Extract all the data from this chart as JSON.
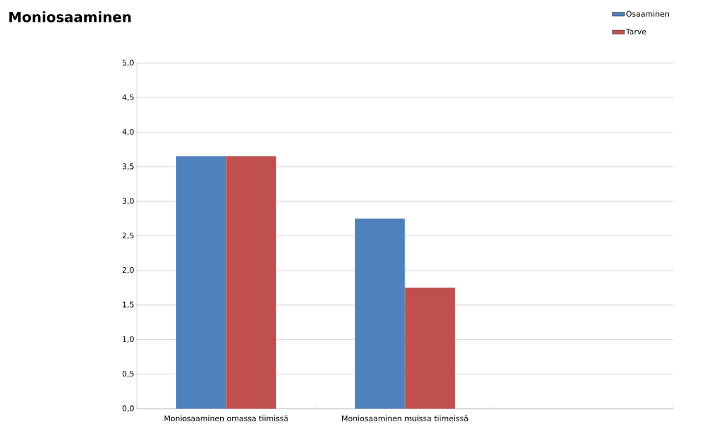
{
  "chart_data": {
    "type": "bar",
    "title": "Moniosaaminen",
    "categories": [
      "Moniosaaminen omassa tiimissä",
      "Moniosaaminen muissa tiimeissä",
      null
    ],
    "series": [
      {
        "name": "Osaaminen",
        "color": "#4f81bd",
        "values": [
          3.65,
          2.75,
          null
        ]
      },
      {
        "name": "Tarve",
        "color": "#c0504d",
        "values": [
          3.65,
          1.75,
          null
        ]
      }
    ],
    "ylim": [
      0,
      5
    ],
    "yticks": [
      {
        "value": 0,
        "label": "0,0"
      },
      {
        "value": 0.5,
        "label": "0,5"
      },
      {
        "value": 1,
        "label": "1,0"
      },
      {
        "value": 1.5,
        "label": "1,5"
      },
      {
        "value": 2,
        "label": "2,0"
      },
      {
        "value": 2.5,
        "label": "2,5"
      },
      {
        "value": 3,
        "label": "3,0"
      },
      {
        "value": 3.5,
        "label": "3,5"
      },
      {
        "value": 4,
        "label": "4,0"
      },
      {
        "value": 4.5,
        "label": "4,5"
      },
      {
        "value": 5,
        "label": "5,0"
      }
    ],
    "grid": "y",
    "legend": "top right"
  }
}
